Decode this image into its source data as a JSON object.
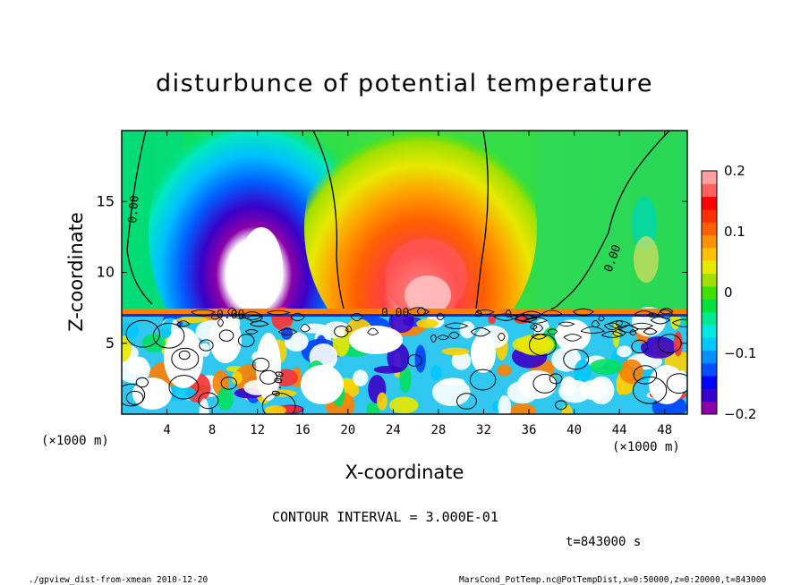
{
  "chart_data": {
    "type": "heatmap",
    "title": "disturbunce of potential temperature",
    "xlabel": "X-coordinate",
    "ylabel": "Z-coordinate",
    "x_unit": "(×1000 m)",
    "y_unit": "(×1000 m)",
    "xlim": [
      0,
      50
    ],
    "ylim": [
      0,
      20
    ],
    "x_ticks": [
      4,
      8,
      12,
      16,
      20,
      24,
      28,
      32,
      36,
      40,
      44,
      48
    ],
    "y_ticks": [
      5,
      10,
      15
    ],
    "colorbar": {
      "min": -0.2,
      "max": 0.2,
      "ticks": [
        -0.2,
        -0.1,
        0,
        0.1,
        0.2
      ],
      "tick_labels": [
        "−0.2",
        "−0.1",
        "0",
        "0.1",
        "0.2"
      ],
      "colors": [
        "#8b00a8",
        "#3a00c8",
        "#0000ff",
        "#0050ff",
        "#0090ff",
        "#00c8ff",
        "#00e8e0",
        "#00e890",
        "#00e040",
        "#40e000",
        "#a0e000",
        "#e8e800",
        "#ffc000",
        "#ff9000",
        "#ff6000",
        "#ff3000",
        "#ff0000",
        "#ff6060",
        "#ffa0a0"
      ]
    },
    "contour_zero_labels": [
      "0.00",
      "0.00",
      "0.00",
      "0.00",
      "0.00",
      "0.0"
    ],
    "features": [
      {
        "kind": "cold anomaly",
        "x_center": 12,
        "z_center": 12,
        "value_min": -0.2
      },
      {
        "kind": "warm anomaly",
        "x_center": 27,
        "z_center": 11,
        "value_max": 0.2
      }
    ]
  },
  "annotations": {
    "contour_interval": "CONTOUR INTERVAL = 3.000E-01",
    "time": "t=843000 s",
    "footer_left": "./gpview_dist-from-xmean  2010-12-20",
    "footer_right": "MarsCond_PotTemp.nc@PotTempDist,x=0:50000,z=0:20000,t=843000"
  }
}
